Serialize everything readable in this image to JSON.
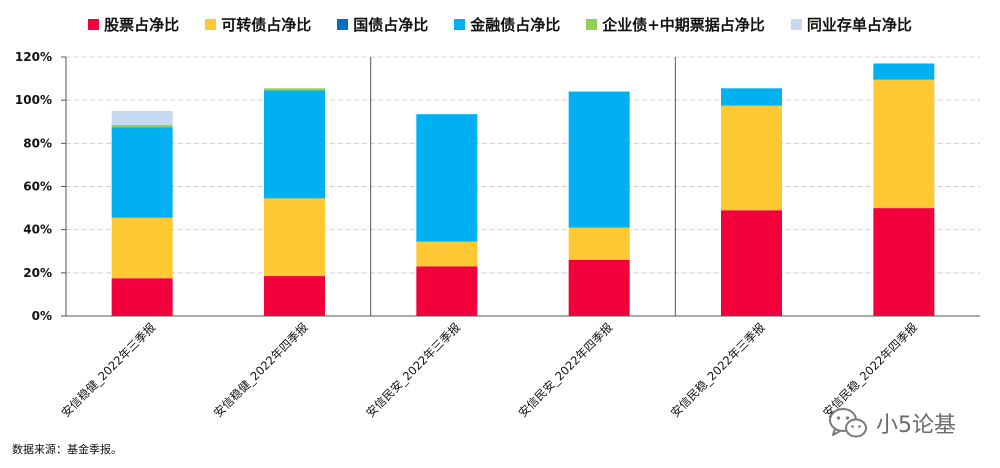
{
  "chart_data": {
    "type": "bar",
    "stacked": true,
    "categories": [
      "安信稳健_2022年三季报",
      "安信稳健_2022年四季报",
      "安信民安_2022年三季报",
      "安信民安_2022年四季报",
      "安信民稳_2022年三季报",
      "安信民稳_2022年四季报"
    ],
    "series": [
      {
        "name": "股票占净比",
        "color": "#f2003c",
        "values": [
          17.5,
          18.5,
          23,
          26,
          49,
          50
        ]
      },
      {
        "name": "可转债占净比",
        "color": "#ffc933",
        "values": [
          28,
          36,
          11.5,
          15,
          48.5,
          59.5
        ]
      },
      {
        "name": "国债占净比",
        "color": "#0070c0",
        "values": [
          0,
          0,
          0,
          0,
          0,
          0
        ]
      },
      {
        "name": "金融债占净比",
        "color": "#00b0f0",
        "values": [
          42,
          50,
          59,
          63,
          8,
          7.5
        ]
      },
      {
        "name": "企业债+中期票据占净比",
        "color": "#92d050",
        "values": [
          1,
          1,
          0,
          0,
          0,
          0
        ]
      },
      {
        "name": "同业存单占净比",
        "color": "#c5d9f1",
        "values": [
          6.5,
          0,
          0,
          0,
          0,
          0
        ]
      }
    ],
    "yticks": [
      "0%",
      "20%",
      "40%",
      "60%",
      "80%",
      "100%",
      "120%"
    ],
    "ylim": [
      0,
      120
    ],
    "ytick_values": [
      0,
      20,
      40,
      60,
      80,
      100,
      120
    ],
    "grid": true,
    "legend_position": "top",
    "title": "",
    "xlabel": "",
    "ylabel": ""
  },
  "source_note": "数据来源：基金季报。",
  "watermark": {
    "text": "小5论基",
    "icon": "wechat-icon"
  }
}
